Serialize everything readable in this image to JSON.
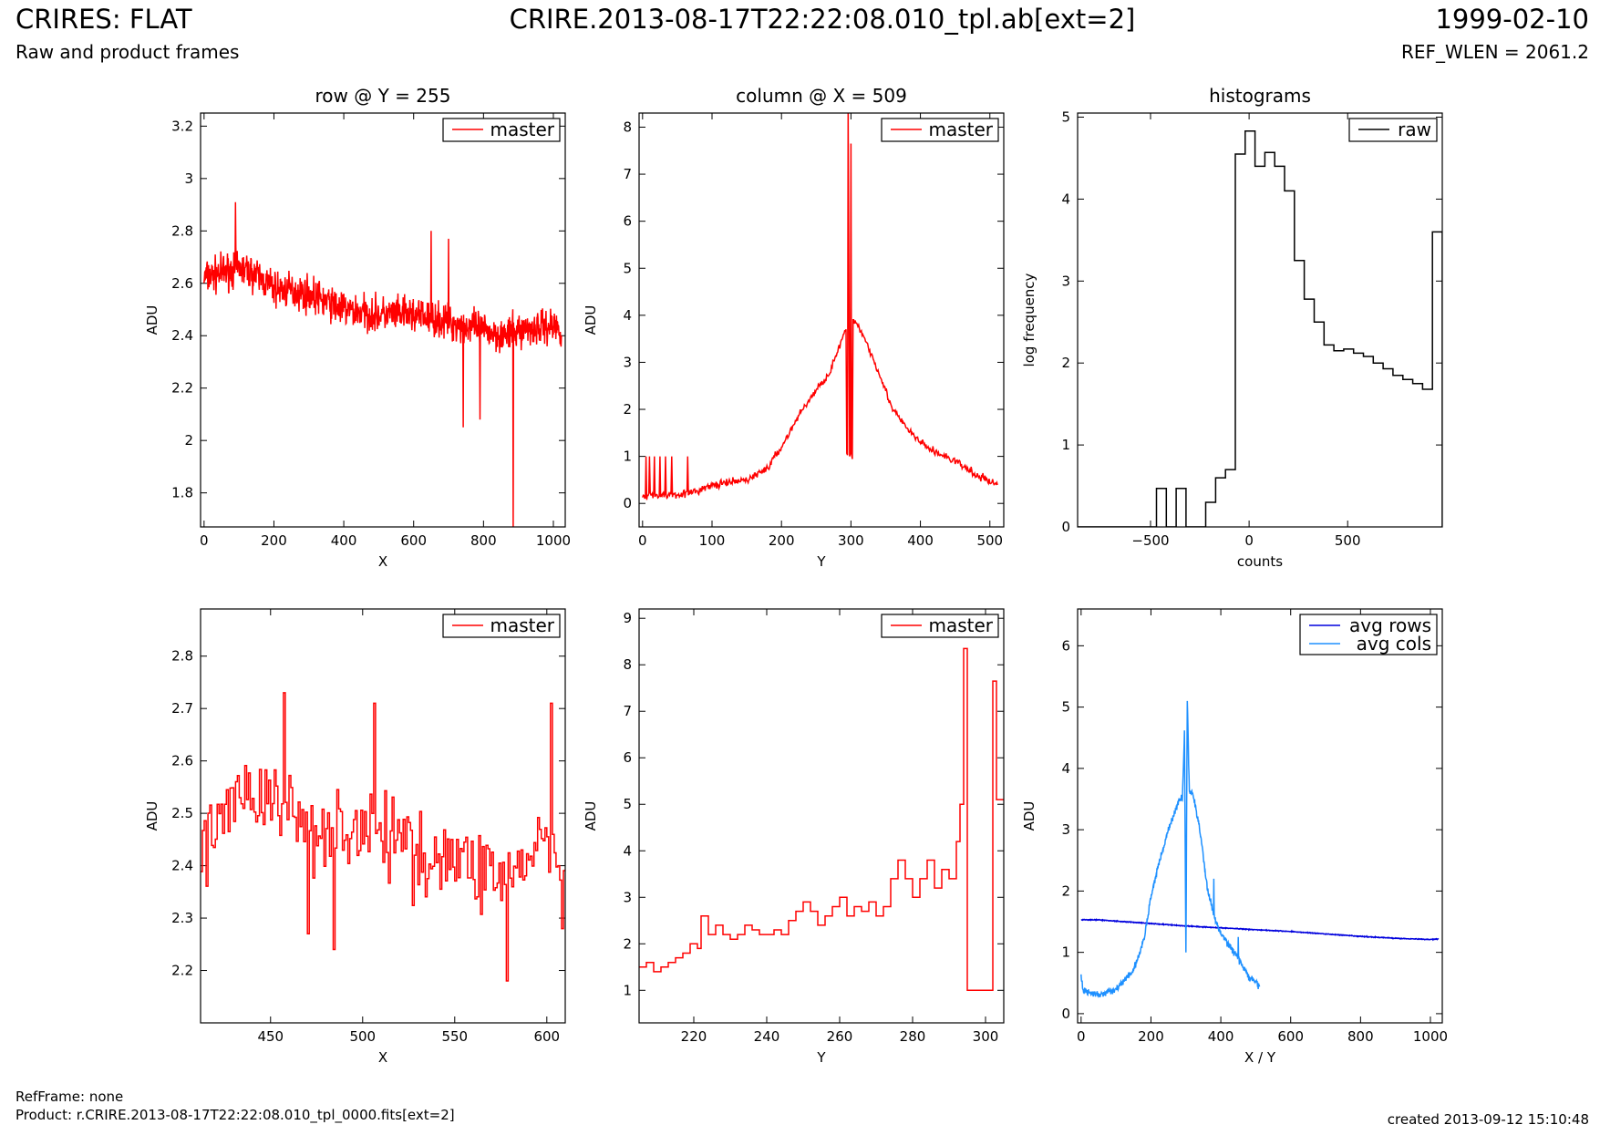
{
  "header": {
    "title_left": "CRIRES: FLAT",
    "subtitle_left": "Raw and product frames",
    "title_center": "CRIRE.2013-08-17T22:22:08.010_tpl.ab[ext=2]",
    "title_right": "1999-02-10",
    "subtitle_right": "REF_WLEN = 2061.2"
  },
  "footer": {
    "refframe": "RefFrame: none",
    "product": "Product: r.CRIRE.2013-08-17T22:22:08.010_tpl_0000.fits[ext=2]",
    "created": "created 2013-09-12 15:10:48"
  },
  "colors": {
    "red": "#ff0000",
    "darkblue": "#0000dd",
    "lightblue": "#1e90ff",
    "black": "#000000"
  },
  "chart_data": [
    {
      "type": "line",
      "title": "row @ Y = 255",
      "xlabel": "X",
      "ylabel": "ADU",
      "xlim": [
        -10,
        1034
      ],
      "ylim": [
        1.67,
        3.25
      ],
      "xticks": [
        0,
        200,
        400,
        600,
        800,
        1000
      ],
      "yticks": [
        1.8,
        2.0,
        2.2,
        2.4,
        2.6,
        2.8,
        3.0,
        3.2
      ],
      "legend_position": "top-right",
      "series": [
        {
          "name": "master",
          "color": "#ff0000",
          "style": "noisy-line",
          "x": [
            0,
            50,
            100,
            150,
            200,
            300,
            400,
            500,
            600,
            700,
            800,
            870,
            900,
            1000,
            1023
          ],
          "y": [
            2.62,
            2.64,
            2.66,
            2.63,
            2.58,
            2.56,
            2.5,
            2.48,
            2.48,
            2.45,
            2.42,
            2.4,
            2.42,
            2.44,
            2.42
          ],
          "noise": 0.1,
          "spikes": [
            [
              885,
              1.67
            ],
            [
              742,
              2.05
            ],
            [
              790,
              2.08
            ],
            [
              700,
              2.77
            ],
            [
              90,
              2.91
            ],
            [
              650,
              2.8
            ]
          ]
        }
      ]
    },
    {
      "type": "line",
      "title": "column @ X = 509",
      "xlabel": "Y",
      "ylabel": "ADU",
      "xlim": [
        -5,
        520
      ],
      "ylim": [
        -0.5,
        8.3
      ],
      "xticks": [
        0,
        100,
        200,
        300,
        400,
        500
      ],
      "yticks": [
        0,
        1,
        2,
        3,
        4,
        5,
        6,
        7,
        8
      ],
      "legend_position": "top-right",
      "series": [
        {
          "name": "master",
          "color": "#ff0000",
          "style": "noisy-line",
          "x": [
            0,
            70,
            100,
            150,
            180,
            200,
            230,
            250,
            270,
            280,
            290,
            293,
            294,
            302,
            303,
            310,
            320,
            340,
            360,
            380,
            400,
            420,
            450,
            480,
            511
          ],
          "y": [
            0.15,
            0.22,
            0.38,
            0.5,
            0.75,
            1.2,
            2.0,
            2.4,
            2.8,
            3.2,
            3.6,
            3.7,
            1.0,
            1.0,
            3.9,
            3.8,
            3.5,
            2.8,
            2.0,
            1.6,
            1.3,
            1.1,
            0.9,
            0.6,
            0.4
          ],
          "noise": 0.12,
          "spikes": [
            [
              5,
              1.0
            ],
            [
              10,
              1.0
            ],
            [
              17,
              1.0
            ],
            [
              25,
              1.0
            ],
            [
              33,
              1.0
            ],
            [
              42,
              1.0
            ],
            [
              65,
              1.0
            ],
            [
              296,
              8.3
            ],
            [
              300,
              7.65
            ],
            [
              297,
              5.1
            ]
          ]
        }
      ]
    },
    {
      "type": "histogram",
      "title": "histograms",
      "xlabel": "counts",
      "ylabel": "log frequency",
      "xlim": [
        -870,
        980
      ],
      "ylim": [
        0,
        5.05
      ],
      "xticks": [
        -500,
        0,
        500
      ],
      "yticks": [
        0,
        1,
        2,
        3,
        4,
        5
      ],
      "legend_position": "top-right",
      "bin_width": 50,
      "series": [
        {
          "name": "raw",
          "color": "#000000",
          "bins_left": [
            -470,
            -420,
            -370,
            -320,
            -270,
            -220,
            -170,
            -120,
            -70,
            -20,
            30,
            80,
            130,
            180,
            230,
            280,
            330,
            380,
            430,
            480,
            530,
            580,
            630,
            680,
            730,
            780,
            830,
            880,
            930
          ],
          "values": [
            0.47,
            0,
            0.47,
            0,
            0,
            0.3,
            0.6,
            0.7,
            4.55,
            4.83,
            4.4,
            4.57,
            4.4,
            4.1,
            3.25,
            2.78,
            2.5,
            2.22,
            2.15,
            2.17,
            2.12,
            2.08,
            2.0,
            1.93,
            1.85,
            1.8,
            1.75,
            1.68,
            3.6
          ]
        }
      ]
    },
    {
      "type": "line",
      "title": "",
      "xlabel": "X",
      "ylabel": "ADU",
      "xlim": [
        412,
        610
      ],
      "ylim": [
        2.1,
        2.89
      ],
      "xticks": [
        450,
        500,
        550,
        600
      ],
      "yticks": [
        2.2,
        2.3,
        2.4,
        2.5,
        2.6,
        2.7,
        2.8
      ],
      "legend_position": "top-right",
      "series": [
        {
          "name": "master",
          "color": "#ff0000",
          "style": "step-noisy",
          "x": [
            412,
            430,
            450,
            470,
            500,
            530,
            560,
            580,
            600,
            610
          ],
          "y": [
            2.42,
            2.55,
            2.52,
            2.48,
            2.47,
            2.43,
            2.4,
            2.38,
            2.45,
            2.35
          ],
          "noise": 0.12,
          "spikes": [
            [
              457,
              2.73
            ],
            [
              470,
              2.27
            ],
            [
              484,
              2.24
            ],
            [
              506,
              2.71
            ],
            [
              578,
              2.18
            ],
            [
              602,
              2.71
            ],
            [
              608,
              2.28
            ]
          ]
        }
      ]
    },
    {
      "type": "line",
      "title": "",
      "xlabel": "Y",
      "ylabel": "ADU",
      "xlim": [
        205,
        305
      ],
      "ylim": [
        0.3,
        9.2
      ],
      "xticks": [
        220,
        240,
        260,
        280,
        300
      ],
      "yticks": [
        1,
        2,
        3,
        4,
        5,
        6,
        7,
        8,
        9
      ],
      "legend_position": "top-right",
      "series": [
        {
          "name": "master",
          "color": "#ff0000",
          "style": "step",
          "x": [
            205,
            207,
            209,
            211,
            213,
            215,
            217,
            219,
            221,
            222,
            224,
            226,
            228,
            230,
            232,
            234,
            236,
            238,
            240,
            242,
            244,
            246,
            248,
            250,
            252,
            254,
            256,
            258,
            260,
            262,
            264,
            266,
            268,
            270,
            272,
            274,
            276,
            278,
            280,
            282,
            284,
            286,
            288,
            290,
            292,
            293,
            294,
            295,
            302,
            303,
            304
          ],
          "y": [
            1.5,
            1.6,
            1.4,
            1.5,
            1.6,
            1.7,
            1.8,
            2.0,
            1.9,
            2.6,
            2.2,
            2.4,
            2.2,
            2.1,
            2.2,
            2.4,
            2.3,
            2.2,
            2.2,
            2.3,
            2.2,
            2.5,
            2.7,
            2.9,
            2.7,
            2.4,
            2.6,
            2.8,
            3.0,
            2.6,
            2.8,
            2.7,
            2.9,
            2.6,
            2.8,
            3.4,
            3.8,
            3.4,
            3.0,
            3.4,
            3.8,
            3.2,
            3.6,
            3.4,
            4.2,
            5.0,
            8.35,
            1.0,
            7.65,
            5.1,
            5.1
          ]
        }
      ]
    },
    {
      "type": "line",
      "title": "",
      "xlabel": "X / Y",
      "ylabel": "ADU",
      "xlim": [
        -10,
        1034
      ],
      "ylim": [
        -0.15,
        6.6
      ],
      "xticks": [
        0,
        200,
        400,
        600,
        800,
        1000
      ],
      "yticks": [
        0,
        1,
        2,
        3,
        4,
        5,
        6
      ],
      "legend_position": "top-right",
      "series": [
        {
          "name": "avg rows",
          "color": "#0000dd",
          "style": "smooth",
          "x": [
            0,
            50,
            100,
            200,
            300,
            400,
            500,
            600,
            700,
            800,
            900,
            1000,
            1023
          ],
          "y": [
            1.53,
            1.53,
            1.51,
            1.47,
            1.43,
            1.4,
            1.37,
            1.34,
            1.3,
            1.26,
            1.23,
            1.21,
            1.22
          ],
          "noise": 0.01
        },
        {
          "name": "avg cols",
          "color": "#1e90ff",
          "style": "noisy-line",
          "x": [
            0,
            5,
            20,
            50,
            100,
            150,
            180,
            200,
            220,
            250,
            270,
            280,
            290,
            296,
            300,
            304,
            310,
            320,
            340,
            360,
            380,
            400,
            420,
            450,
            480,
            511
          ],
          "y": [
            0.65,
            0.4,
            0.35,
            0.3,
            0.4,
            0.7,
            1.2,
            1.9,
            2.4,
            3.0,
            3.3,
            3.5,
            3.5,
            4.6,
            1.0,
            5.1,
            3.6,
            3.6,
            3.0,
            2.1,
            1.6,
            1.3,
            1.15,
            0.9,
            0.6,
            0.45
          ],
          "noise": 0.08,
          "spikes": [
            [
              296,
              4.62
            ],
            [
              304,
              5.1
            ],
            [
              300,
              1.0
            ],
            [
              380,
              2.2
            ],
            [
              450,
              1.25
            ]
          ]
        }
      ]
    }
  ]
}
